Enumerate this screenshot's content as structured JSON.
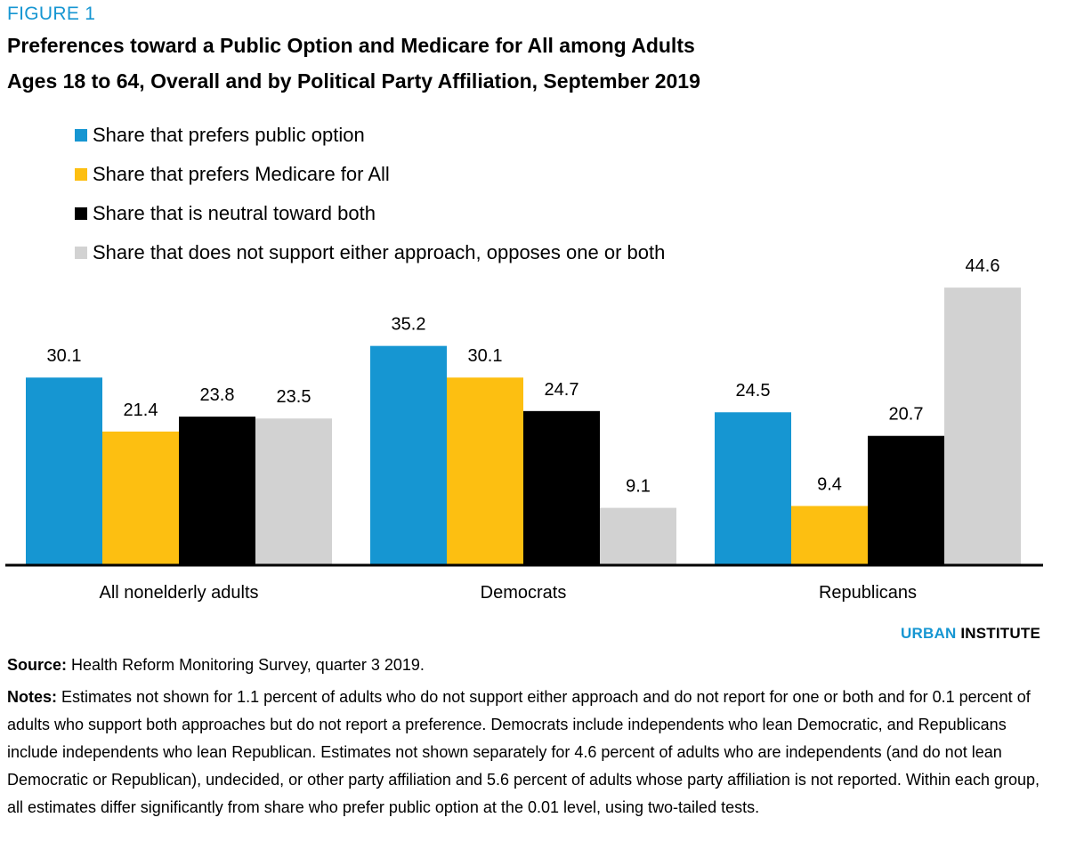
{
  "figure_label": "FIGURE 1",
  "title_lines": [
    "Preferences toward a Public Option and Medicare for All among Adults",
    "Ages 18 to 64, Overall and by Political Party Affiliation, September 2019"
  ],
  "brand": {
    "part1": "URBAN",
    "part2": "INSTITUTE",
    "part1_color": "#1696d2"
  },
  "source": {
    "label": "Source:",
    "text": " Health Reform Monitoring Survey, quarter 3 2019."
  },
  "notes": {
    "label": "Notes:",
    "text": " Estimates not shown for 1.1 percent of adults who do not support either approach and do not report for one or both and for 0.1 percent of adults who support both approaches but do not report a preference. Democrats include independents who lean Democratic, and Republicans include independents who lean Republican. Estimates not shown separately for 4.6 percent of adults who are independents (and do not lean Democratic or Republican), undecided, or other party affiliation and 5.6 percent of adults whose party affiliation is not reported. Within each group, all estimates differ significantly from share who prefer public option at the 0.01 level, using two-tailed tests."
  },
  "chart_data": {
    "type": "bar",
    "title": "Preferences toward a Public Option and Medicare for All among Adults Ages 18 to 64, Overall and by Political Party Affiliation, September 2019",
    "xlabel": "",
    "ylabel": "",
    "ylim": [
      0,
      45
    ],
    "grid": false,
    "legend_position": "top-left",
    "categories": [
      "All nonelderly adults",
      "Democrats",
      "Republicans"
    ],
    "series": [
      {
        "name": "Share that prefers public option",
        "color": "#1696d2",
        "values": [
          30.1,
          35.2,
          24.5
        ]
      },
      {
        "name": "Share that prefers Medicare for All",
        "color": "#fdbf11",
        "values": [
          21.4,
          30.1,
          9.4
        ]
      },
      {
        "name": "Share that is neutral toward both",
        "color": "#000000",
        "values": [
          23.8,
          24.7,
          20.7
        ]
      },
      {
        "name": "Share that does not support either approach, opposes one or both",
        "color": "#d2d2d2",
        "values": [
          23.5,
          9.1,
          44.6
        ]
      }
    ],
    "value_labels": [
      [
        "30.1",
        "35.2",
        "24.5"
      ],
      [
        "21.4",
        "30.1",
        "9.4"
      ],
      [
        "23.8",
        "24.7",
        "20.7"
      ],
      [
        "23.5",
        "9.1",
        "44.6"
      ]
    ]
  }
}
